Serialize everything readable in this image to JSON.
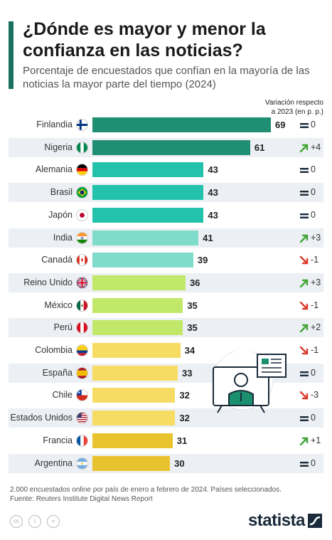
{
  "header": {
    "title": "¿Dónde es mayor y menor la confianza en las noticias?",
    "subtitle": "Porcentaje de encuestados que confían en la mayoría de las noticias la mayor parte del tiempo (2024)",
    "variation_header_line1": "Variación respecto",
    "variation_header_line2": "a 2023 (en p. p.)"
  },
  "colors": {
    "accent": "#1b6f5e",
    "tier_69_61": "#1f8e73",
    "tier_43": "#22c2ad",
    "tier_41_39": "#7fdccb",
    "tier_36_35": "#c2e86a",
    "tier_34_32": "#f7dc64",
    "tier_31_30": "#e8c32e",
    "up_arrow": "#3fa535",
    "down_arrow": "#d93a2b"
  },
  "chart_data": {
    "type": "bar",
    "orientation": "horizontal",
    "title": "¿Dónde es mayor y menor la confianza en las noticias?",
    "xlim": [
      0,
      72
    ],
    "grid": false,
    "categories": [
      "Finlandia",
      "Nigeria",
      "Alemania",
      "Brasil",
      "Japón",
      "India",
      "Canadá",
      "Reino Unido",
      "México",
      "Perú",
      "Colombia",
      "España",
      "Chile",
      "Estados Unidos",
      "Francia",
      "Argentina"
    ],
    "values": [
      69,
      61,
      43,
      43,
      43,
      41,
      39,
      36,
      35,
      35,
      34,
      33,
      32,
      32,
      31,
      30
    ],
    "value_labels": [
      "69",
      "61",
      "43",
      "43",
      "43",
      "41",
      "39",
      "36",
      "35",
      "35",
      "34",
      "33",
      "32",
      "32",
      "31",
      "30"
    ],
    "variation": [
      0,
      4,
      0,
      0,
      0,
      3,
      -1,
      3,
      -1,
      2,
      -1,
      0,
      -3,
      0,
      1,
      0
    ],
    "variation_labels": [
      "0",
      "+4",
      "0",
      "0",
      "0",
      "+3",
      "-1",
      "+3",
      "-1",
      "+2",
      "-1",
      "0",
      "-3",
      "0",
      "+1",
      "0"
    ],
    "flags": [
      "flag-finland",
      "flag-nigeria",
      "flag-germany",
      "flag-brazil",
      "flag-japan",
      "flag-india",
      "flag-canada",
      "flag-uk",
      "flag-mexico",
      "flag-peru",
      "flag-colombia",
      "flag-spain",
      "flag-chile",
      "flag-usa",
      "flag-france",
      "flag-argentina"
    ]
  },
  "footer": {
    "note": "2.000 encuestados online por país de enero a febrero de 2024. Países seleccionados.",
    "source": "Fuente: Reuters Institute Digital News Report",
    "brand": "statista",
    "license_icons": [
      "cc-icon",
      "by-icon",
      "nd-icon"
    ]
  }
}
